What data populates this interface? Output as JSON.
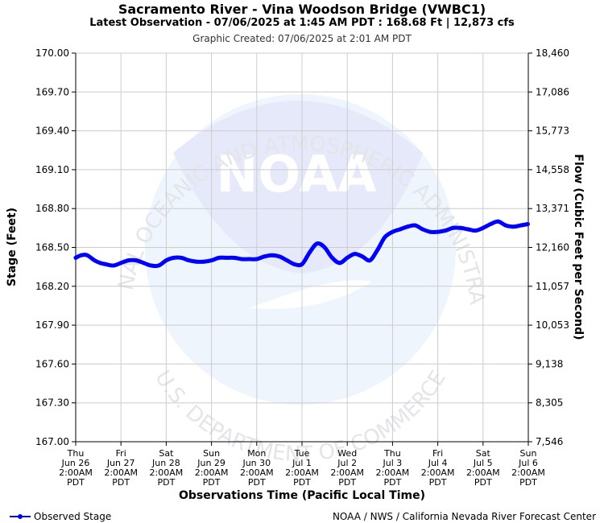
{
  "header": {
    "title": "Sacramento River - Vina Woodson Bridge (VWBC1)",
    "subtitle": "Latest Observation - 07/06/2025 at 1:45 AM PDT : 168.68 Ft | 12,873 cfs",
    "created": "Graphic Created: 07/06/2025 at 2:01 AM PDT"
  },
  "watermark": {
    "text_top": "NATIONAL OCEANIC AND ATMOSPHERIC ADMINISTRATION",
    "text_bottom": "U.S. DEPARTMENT OF COMMERCE",
    "logo_text": "NOAA"
  },
  "footer": {
    "legend_label": "Observed Stage",
    "credit": "NOAA / NWS / California Nevada River Forecast Center"
  },
  "colors": {
    "series": "#0000ff",
    "grid": "#cccccc",
    "watermark_blue": "#e8ecfb",
    "watermark_light": "#eef5fd"
  },
  "chart_data": {
    "type": "line",
    "xlabel": "Observations Time (Pacific Local Time)",
    "ylabel": "Stage (Feet)",
    "y2label": "Flow (Cubic Feet per Second)",
    "ylim": [
      167.0,
      170.0
    ],
    "xlim": [
      "2025-06-26 02:00",
      "2025-07-06 02:00"
    ],
    "grid": true,
    "legend_position": "bottom-left",
    "yticks": [
      "167.00",
      "167.30",
      "167.60",
      "167.90",
      "168.20",
      "168.50",
      "168.80",
      "169.10",
      "169.40",
      "169.70",
      "170.00"
    ],
    "y2ticks": [
      "7,546",
      "8,305",
      "9,138",
      "10,053",
      "11,057",
      "12,160",
      "13,371",
      "14,558",
      "15,773",
      "17,086",
      "18,460"
    ],
    "xticks": [
      [
        "Thu",
        "Jun 26",
        "2:00AM",
        "PDT"
      ],
      [
        "Fri",
        "Jun 27",
        "2:00AM",
        "PDT"
      ],
      [
        "Sat",
        "Jun 28",
        "2:00AM",
        "PDT"
      ],
      [
        "Sun",
        "Jun 29",
        "2:00AM",
        "PDT"
      ],
      [
        "Mon",
        "Jun 30",
        "2:00AM",
        "PDT"
      ],
      [
        "Tue",
        "Jul 1",
        "2:00AM",
        "PDT"
      ],
      [
        "Wed",
        "Jul 2",
        "2:00AM",
        "PDT"
      ],
      [
        "Thu",
        "Jul 3",
        "2:00AM",
        "PDT"
      ],
      [
        "Fri",
        "Jul 4",
        "2:00AM",
        "PDT"
      ],
      [
        "Sat",
        "Jul 5",
        "2:00AM",
        "PDT"
      ],
      [
        "Sun",
        "Jul 6",
        "2:00AM",
        "PDT"
      ]
    ],
    "series": [
      {
        "name": "Observed Stage",
        "x": [
          "2025-06-26 02:00",
          "2025-06-26 05:00",
          "2025-06-26 08:00",
          "2025-06-26 12:00",
          "2025-06-26 15:00",
          "2025-06-26 18:00",
          "2025-06-26 22:00",
          "2025-06-27 02:00",
          "2025-06-27 06:00",
          "2025-06-27 10:00",
          "2025-06-27 14:00",
          "2025-06-27 18:00",
          "2025-06-27 22:00",
          "2025-06-28 02:00",
          "2025-06-28 06:00",
          "2025-06-28 10:00",
          "2025-06-28 14:00",
          "2025-06-28 18:00",
          "2025-06-28 22:00",
          "2025-06-29 02:00",
          "2025-06-29 06:00",
          "2025-06-29 10:00",
          "2025-06-29 14:00",
          "2025-06-29 18:00",
          "2025-06-29 22:00",
          "2025-06-30 02:00",
          "2025-06-30 06:00",
          "2025-06-30 10:00",
          "2025-06-30 14:00",
          "2025-06-30 18:00",
          "2025-06-30 22:00",
          "2025-07-01 02:00",
          "2025-07-01 06:00",
          "2025-07-01 10:00",
          "2025-07-01 14:00",
          "2025-07-01 18:00",
          "2025-07-01 22:00",
          "2025-07-02 02:00",
          "2025-07-02 06:00",
          "2025-07-02 10:00",
          "2025-07-02 14:00",
          "2025-07-02 18:00",
          "2025-07-02 22:00",
          "2025-07-03 02:00",
          "2025-07-03 06:00",
          "2025-07-03 10:00",
          "2025-07-03 14:00",
          "2025-07-03 18:00",
          "2025-07-03 22:00",
          "2025-07-04 02:00",
          "2025-07-04 06:00",
          "2025-07-04 10:00",
          "2025-07-04 14:00",
          "2025-07-04 18:00",
          "2025-07-04 22:00",
          "2025-07-05 02:00",
          "2025-07-05 06:00",
          "2025-07-05 10:00",
          "2025-07-05 14:00",
          "2025-07-05 18:00",
          "2025-07-05 22:00",
          "2025-07-06 01:45"
        ],
        "values": [
          168.42,
          168.44,
          168.44,
          168.4,
          168.38,
          168.37,
          168.36,
          168.38,
          168.4,
          168.4,
          168.38,
          168.36,
          168.36,
          168.4,
          168.42,
          168.42,
          168.4,
          168.39,
          168.39,
          168.4,
          168.42,
          168.42,
          168.42,
          168.41,
          168.41,
          168.41,
          168.43,
          168.44,
          168.43,
          168.4,
          168.37,
          168.37,
          168.46,
          168.53,
          168.5,
          168.42,
          168.38,
          168.42,
          168.45,
          168.43,
          168.4,
          168.48,
          168.58,
          168.62,
          168.64,
          168.66,
          168.67,
          168.64,
          168.62,
          168.62,
          168.63,
          168.65,
          168.65,
          168.64,
          168.63,
          168.65,
          168.68,
          168.7,
          168.67,
          168.66,
          168.67,
          168.68
        ]
      }
    ]
  }
}
